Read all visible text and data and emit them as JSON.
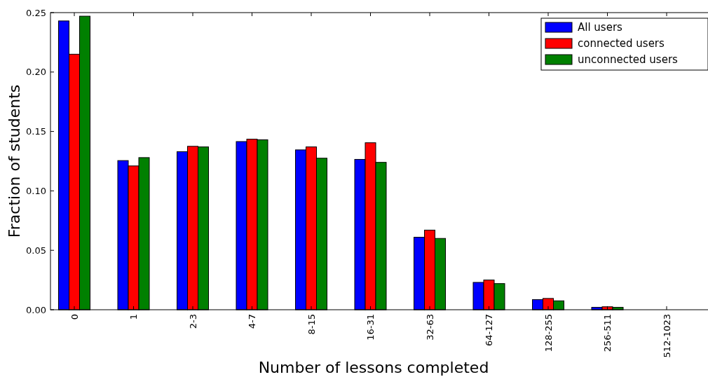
{
  "chart_data": {
    "type": "bar",
    "xlabel": "Number of lessons completed",
    "ylabel": "Fraction of students",
    "categories": [
      "0",
      "1",
      "2-3",
      "4-7",
      "8-15",
      "16-31",
      "32-63",
      "64-127",
      "128-255",
      "256-511",
      "512-1023"
    ],
    "series": [
      {
        "name": "All users",
        "color": "#0000ff",
        "values": [
          0.243,
          0.1255,
          0.133,
          0.1415,
          0.1345,
          0.1265,
          0.061,
          0.023,
          0.0085,
          0.002,
          null
        ]
      },
      {
        "name": "connected users",
        "color": "#ff0000",
        "values": [
          0.215,
          0.121,
          0.1375,
          0.1435,
          0.137,
          0.1405,
          0.067,
          0.025,
          0.0095,
          0.0025,
          null
        ]
      },
      {
        "name": "unconnected users",
        "color": "#008000",
        "values": [
          0.247,
          0.128,
          0.137,
          0.143,
          0.1275,
          0.124,
          0.06,
          0.022,
          0.0075,
          0.002,
          null
        ]
      }
    ],
    "ylim": [
      0,
      0.25
    ],
    "yticks": [
      {
        "value": 0,
        "label": "0.00"
      },
      {
        "value": 0.05,
        "label": "0.05"
      },
      {
        "value": 0.1,
        "label": "0.10"
      },
      {
        "value": 0.15,
        "label": "0.15"
      },
      {
        "value": 0.2,
        "label": "0.20"
      },
      {
        "value": 0.25,
        "label": "0.25"
      }
    ],
    "grid": false,
    "legend": "top right"
  }
}
